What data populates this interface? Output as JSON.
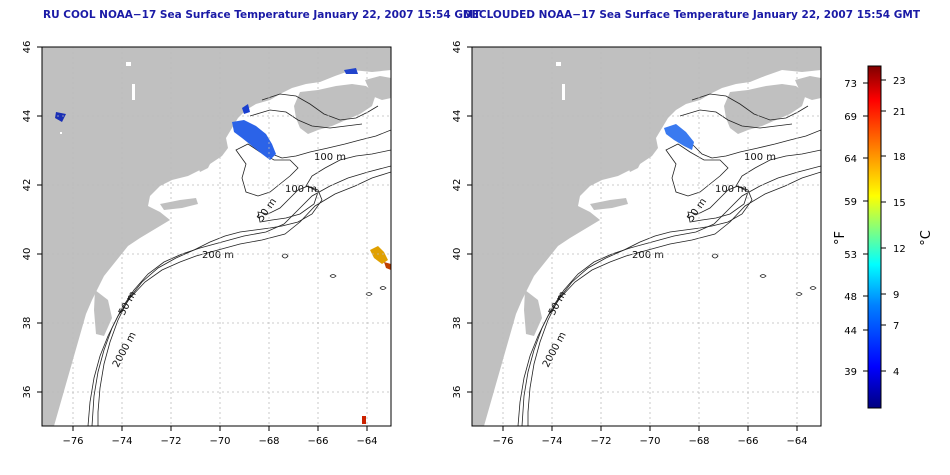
{
  "panels": [
    {
      "title": "RU COOL NOAA−17 Sea Surface Temperature January 22, 2007 15:54 GMT",
      "contour_labels": [
        "100 m",
        "100 m",
        "50 m",
        "200 m",
        "50 m",
        "2000 m"
      ],
      "temperature_patches": [
        "blue",
        "blue",
        "blue",
        "orange",
        "red"
      ]
    },
    {
      "title": "DECLOUDED NOAA−17 Sea Surface Temperature January 22, 2007 15:54 GMT",
      "contour_labels": [
        "100 m",
        "100 m",
        "50 m",
        "200 m",
        "50 m",
        "2000 m"
      ],
      "temperature_patches": [
        "blue"
      ]
    }
  ],
  "axes": {
    "lon_ticks": [
      "−76",
      "−74",
      "−72",
      "−70",
      "−68",
      "−66",
      "−64"
    ],
    "lat_ticks": [
      "36",
      "38",
      "40",
      "42",
      "44",
      "46"
    ],
    "lon_range": [
      -77,
      -63
    ],
    "lat_range": [
      35,
      46
    ]
  },
  "colorbar": {
    "fahrenheit_label": "°F",
    "celsius_label": "°C",
    "fahrenheit_ticks": [
      "39",
      "44",
      "48",
      "53",
      "59",
      "64",
      "69",
      "73"
    ],
    "celsius_ticks": [
      "4",
      "7",
      "9",
      "12",
      "15",
      "18",
      "21",
      "23"
    ],
    "colors": [
      "#000080",
      "#0000ff",
      "#0080ff",
      "#00ffff",
      "#80ff80",
      "#ffff00",
      "#ff8000",
      "#ff0000",
      "#800000"
    ]
  },
  "colors": {
    "land": "#c0c0c0",
    "ocean": "#ffffff",
    "title": "#1a1aa6",
    "grid": "#bbbbbb"
  }
}
